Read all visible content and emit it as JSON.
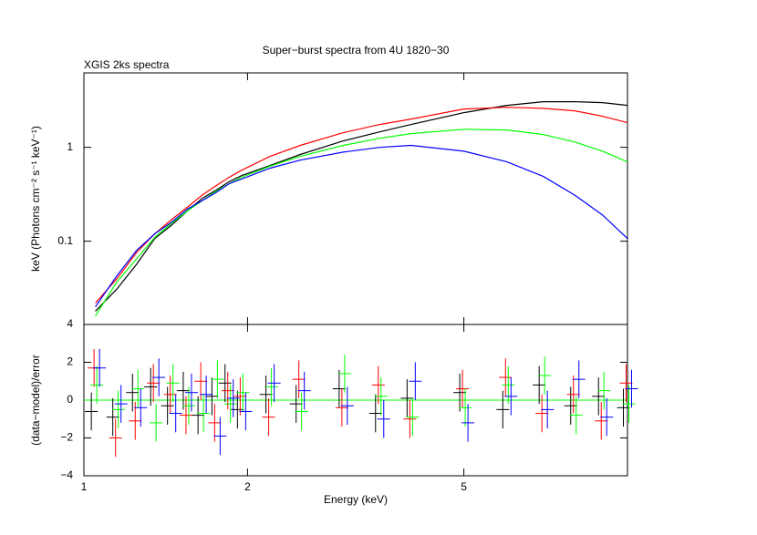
{
  "chart_data": [
    {
      "type": "line",
      "title": "Super−burst spectra from 4U 1820−30",
      "subtitle": "XGIS 2ks spectra",
      "y_label": "keV (Photons cm⁻² s⁻¹ keV⁻¹)",
      "x_scale": "log",
      "y_scale": "log",
      "xlim": [
        1,
        10
      ],
      "ylim": [
        0.013,
        6.2
      ],
      "yticks": [
        0.1,
        1
      ],
      "x": [
        1.05,
        1.15,
        1.25,
        1.35,
        1.45,
        1.55,
        1.65,
        1.75,
        1.85,
        1.95,
        2.2,
        2.5,
        3,
        3.5,
        4,
        5,
        6,
        7,
        8,
        9,
        10
      ],
      "series": [
        {
          "name": "black",
          "color": "#000000",
          "values": [
            0.018,
            0.031,
            0.057,
            0.107,
            0.149,
            0.21,
            0.286,
            0.35,
            0.43,
            0.5,
            0.64,
            0.84,
            1.17,
            1.46,
            1.75,
            2.34,
            2.8,
            3.06,
            3.06,
            2.99,
            2.8
          ]
        },
        {
          "name": "red",
          "color": "#ff0000",
          "values": [
            0.022,
            0.04,
            0.076,
            0.12,
            0.17,
            0.23,
            0.31,
            0.39,
            0.48,
            0.57,
            0.8,
            1.05,
            1.43,
            1.75,
            2.0,
            2.56,
            2.67,
            2.6,
            2.45,
            2.14,
            1.83
          ]
        },
        {
          "name": "green",
          "color": "#00ff00",
          "values": [
            0.016,
            0.037,
            0.065,
            0.11,
            0.156,
            0.21,
            0.27,
            0.34,
            0.41,
            0.48,
            0.63,
            0.8,
            1.05,
            1.25,
            1.4,
            1.56,
            1.53,
            1.37,
            1.14,
            0.91,
            0.7
          ]
        },
        {
          "name": "blue",
          "color": "#0000ff",
          "values": [
            0.02,
            0.043,
            0.08,
            0.12,
            0.16,
            0.22,
            0.27,
            0.33,
            0.41,
            0.46,
            0.6,
            0.73,
            0.89,
            1.0,
            1.05,
            0.91,
            0.7,
            0.49,
            0.31,
            0.19,
            0.107
          ]
        }
      ]
    },
    {
      "type": "errorbar",
      "x_label": "Energy (keV)",
      "y_label": "(data−model)/error",
      "x_scale": "log",
      "xlim": [
        1,
        10
      ],
      "ylim": [
        -4,
        4
      ],
      "xticks": [
        1,
        2,
        5
      ],
      "yticks": [
        {
          "value": -4,
          "label": "−4"
        },
        {
          "value": -2,
          "label": "−2"
        },
        0,
        2,
        4
      ],
      "x": [
        1.05,
        1.15,
        1.25,
        1.35,
        1.45,
        1.55,
        1.65,
        1.75,
        1.85,
        1.95,
        2.2,
        2.5,
        3,
        3.5,
        4,
        5,
        6,
        7,
        8,
        9,
        10
      ],
      "series": [
        {
          "name": "black",
          "color": "#000000",
          "values": [
            -0.6,
            -0.9,
            0.4,
            0.7,
            -0.3,
            0.5,
            -0.8,
            0.2,
            0.9,
            -0.5,
            0.3,
            -0.2,
            0.6,
            -0.7,
            0.1,
            0.4,
            -0.5,
            0.8,
            -0.3,
            0.2,
            -0.4
          ],
          "errors": [
            1,
            1,
            1,
            1,
            1,
            1,
            1,
            1,
            1,
            1,
            1,
            1,
            1,
            1,
            1,
            1,
            1,
            1,
            1,
            1,
            1
          ]
        },
        {
          "name": "red",
          "color": "#ff0000",
          "values": [
            1.7,
            -2.0,
            -1.1,
            0.9,
            0.3,
            -0.8,
            1.0,
            -1.2,
            0.5,
            0.2,
            -0.9,
            1.1,
            -0.4,
            0.8,
            -1.0,
            0.6,
            1.2,
            -0.7,
            0.3,
            -1.1,
            0.9
          ],
          "errors": [
            1,
            1,
            1,
            1,
            1,
            1,
            1,
            1,
            1,
            1,
            1,
            1,
            1,
            1,
            1,
            1,
            1,
            1,
            1,
            1,
            1
          ]
        },
        {
          "name": "green",
          "color": "#00ff00",
          "values": [
            0.8,
            -0.5,
            0.6,
            -1.2,
            0.9,
            -0.3,
            -0.7,
            1.1,
            -0.2,
            0.4,
            0.7,
            -0.6,
            1.4,
            0.2,
            -0.9,
            -0.4,
            0.8,
            1.3,
            -0.8,
            0.5,
            -0.2
          ],
          "errors": [
            1,
            1,
            1,
            1,
            1,
            1,
            1,
            1,
            1,
            1,
            1,
            1,
            1,
            1,
            1,
            1,
            1,
            1,
            1,
            1,
            1
          ]
        },
        {
          "name": "blue",
          "color": "#0000ff",
          "values": [
            1.7,
            -0.2,
            -0.4,
            1.2,
            -0.7,
            0.4,
            0.3,
            -1.9,
            0.1,
            -0.6,
            0.9,
            0.5,
            -0.3,
            -1.0,
            1.0,
            -1.2,
            0.2,
            -0.5,
            1.1,
            -0.9,
            0.6
          ],
          "errors": [
            1,
            1,
            1,
            1,
            1,
            1,
            1,
            1,
            1,
            1,
            1,
            1,
            1,
            1,
            1,
            1,
            1,
            1,
            1,
            1,
            1
          ]
        }
      ]
    }
  ]
}
